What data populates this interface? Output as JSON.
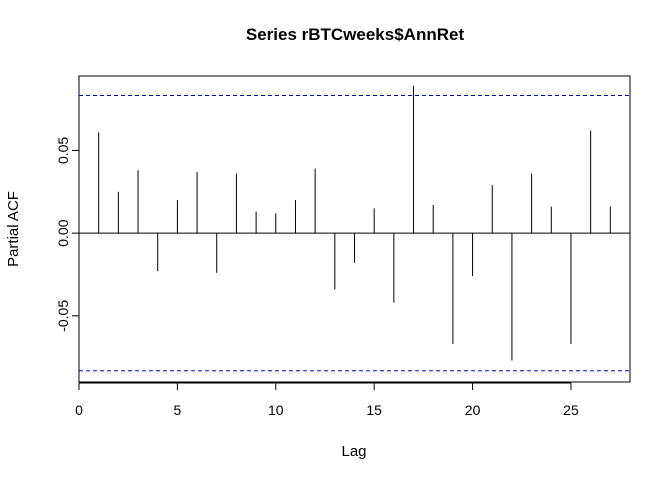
{
  "chart_data": {
    "type": "bar",
    "title": "Series  rBTCweeks$AnnRet",
    "xlabel": "Lag",
    "ylabel": "Partial ACF",
    "xlim": [
      0,
      28
    ],
    "ylim": [
      -0.09,
      0.095
    ],
    "x_ticks": [
      0,
      5,
      10,
      15,
      20,
      25
    ],
    "x_tick_labels": [
      "0",
      "5",
      "10",
      "15",
      "20",
      "25"
    ],
    "y_ticks": [
      -0.05,
      0.0,
      0.05
    ],
    "y_tick_labels": [
      "-0.05",
      "0.00",
      "0.05"
    ],
    "lags": [
      1,
      2,
      3,
      4,
      5,
      6,
      7,
      8,
      9,
      10,
      11,
      12,
      13,
      14,
      15,
      16,
      17,
      18,
      19,
      20,
      21,
      22,
      23,
      24,
      25,
      26,
      27
    ],
    "values": [
      0.061,
      0.025,
      0.038,
      -0.023,
      0.02,
      0.037,
      -0.024,
      0.036,
      0.013,
      0.012,
      0.02,
      0.039,
      -0.034,
      -0.018,
      0.015,
      -0.042,
      0.089,
      0.017,
      -0.067,
      -0.026,
      0.029,
      -0.077,
      0.036,
      0.016,
      -0.067,
      0.062,
      0.016
    ],
    "confidence_bounds": [
      0.0832,
      -0.0832
    ],
    "bound_color": "#0000cc",
    "bar_color": "#000000",
    "grid": false,
    "legend": "none"
  }
}
